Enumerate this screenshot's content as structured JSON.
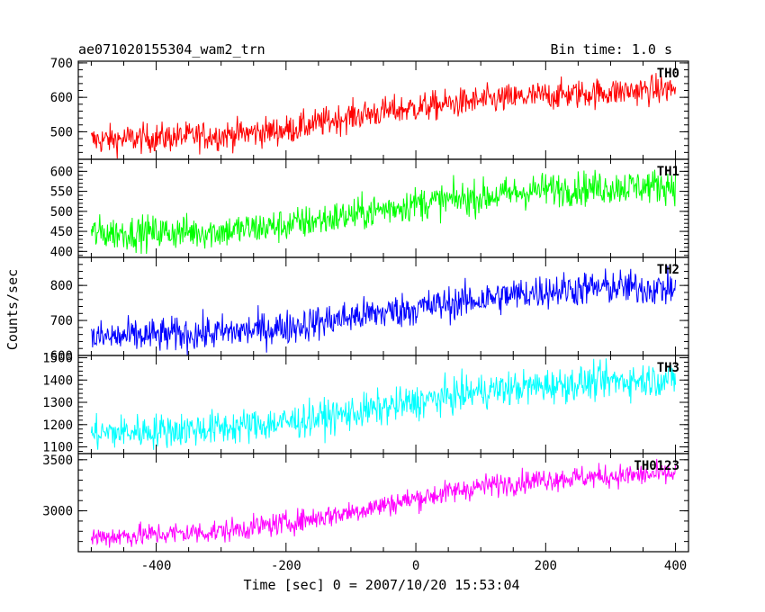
{
  "header": {
    "title": "ae071020155304_wam2_trn",
    "bin_time": "Bin time: 1.0 s"
  },
  "axes": {
    "xlabel": "Time [sec] 0 = 2007/10/20 15:53:04",
    "ylabel": "Counts/sec"
  },
  "chart_data": {
    "type": "line",
    "title": "ae071020155304_wam2_trn",
    "xlabel": "Time [sec] 0 = 2007/10/20 15:53:04",
    "ylabel": "Counts/sec",
    "xlim": [
      -520,
      420
    ],
    "x_ticks": [
      -400,
      -200,
      0,
      200,
      400
    ],
    "x_range_data": [
      -500,
      400
    ],
    "bin_time_s": 1.0,
    "grid": false,
    "panels": [
      {
        "name": "TH0",
        "color": "#ff0000",
        "ylim": [
          420,
          705
        ],
        "y_ticks": [
          500,
          600,
          700
        ],
        "trend_x": [
          -500,
          -300,
          -200,
          -100,
          0,
          100,
          200,
          300,
          400
        ],
        "trend_y": [
          475,
          490,
          505,
          545,
          570,
          590,
          605,
          615,
          625
        ],
        "noise_amp": 30
      },
      {
        "name": "TH1",
        "color": "#00ff00",
        "ylim": [
          385,
          630
        ],
        "y_ticks": [
          400,
          450,
          500,
          550,
          600
        ],
        "trend_x": [
          -500,
          -300,
          -200,
          -100,
          0,
          100,
          200,
          300,
          400
        ],
        "trend_y": [
          445,
          450,
          465,
          490,
          520,
          535,
          555,
          560,
          565
        ],
        "noise_amp": 30
      },
      {
        "name": "TH2",
        "color": "#0000ff",
        "ylim": [
          600,
          880
        ],
        "y_ticks": [
          600,
          700,
          800
        ],
        "trend_x": [
          -500,
          -300,
          -200,
          -100,
          0,
          100,
          200,
          300,
          400
        ],
        "trend_y": [
          650,
          665,
          680,
          710,
          735,
          760,
          785,
          795,
          790
        ],
        "noise_amp": 35
      },
      {
        "name": "TH3",
        "color": "#00ffff",
        "ylim": [
          1070,
          1510
        ],
        "y_ticks": [
          1100,
          1200,
          1300,
          1400,
          1500
        ],
        "trend_x": [
          -500,
          -300,
          -200,
          -100,
          0,
          100,
          200,
          300,
          400
        ],
        "trend_y": [
          1160,
          1185,
          1210,
          1250,
          1300,
          1350,
          1375,
          1395,
          1405
        ],
        "noise_amp": 55
      },
      {
        "name": "TH0123",
        "color": "#ff00ff",
        "ylim": [
          2600,
          3560
        ],
        "y_ticks": [
          3000,
          3500
        ],
        "trend_x": [
          -500,
          -300,
          -200,
          -100,
          0,
          100,
          200,
          300,
          400
        ],
        "trend_y": [
          2740,
          2800,
          2880,
          2990,
          3120,
          3240,
          3310,
          3340,
          3360
        ],
        "noise_amp": 80
      }
    ]
  }
}
